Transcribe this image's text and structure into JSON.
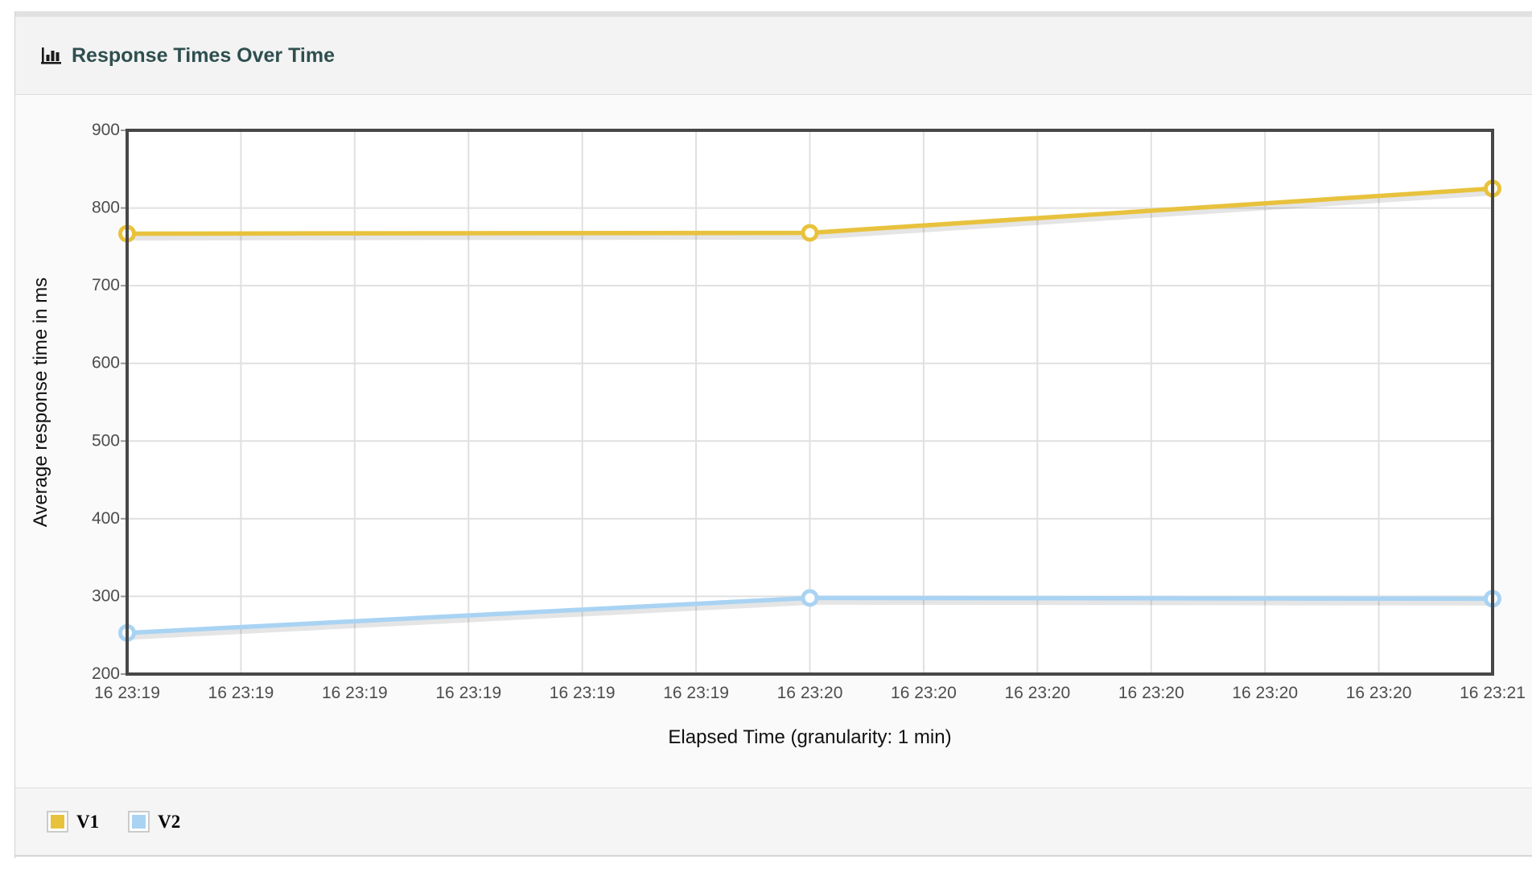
{
  "panel": {
    "title": "Response Times Over Time",
    "title_icon": "bar-chart-icon",
    "title_color": "#2f4f4f"
  },
  "chart_data": {
    "type": "line",
    "title": "Response Times Over Time",
    "xlabel": "Elapsed Time (granularity: 1 min)",
    "ylabel": "Average response time in ms",
    "ylim": [
      200,
      900
    ],
    "y_ticks": [
      900,
      800,
      700,
      600,
      500,
      400,
      300,
      200
    ],
    "x_tick_labels": [
      "16 23:19",
      "16 23:19",
      "16 23:19",
      "16 23:19",
      "16 23:19",
      "16 23:19",
      "16 23:20",
      "16 23:20",
      "16 23:20",
      "16 23:20",
      "16 23:20",
      "16 23:20",
      "16 23:21"
    ],
    "grid": true,
    "legend_position": "bottom-left",
    "series": [
      {
        "name": "V1",
        "color": "#e8c23d",
        "x_tick_indices": [
          0,
          6,
          12
        ],
        "values": [
          767,
          768,
          825
        ]
      },
      {
        "name": "V2",
        "color": "#a9d3f3",
        "x_tick_indices": [
          0,
          6,
          12
        ],
        "values": [
          253,
          298,
          297
        ]
      }
    ]
  },
  "legend": {
    "items": [
      {
        "label": "V1",
        "color": "#e8c23d"
      },
      {
        "label": "V2",
        "color": "#a9d3f3"
      }
    ]
  },
  "colors": {
    "axis_box": "#474747",
    "grid_line": "#e0e0e0",
    "tick_text": "#4d4d4d",
    "axis_title_text": "#111111",
    "plot_background": "#ffffff",
    "header_background": "#f3f3f3",
    "body_background": "#fafafa",
    "legend_background": "#f5f5f5"
  }
}
